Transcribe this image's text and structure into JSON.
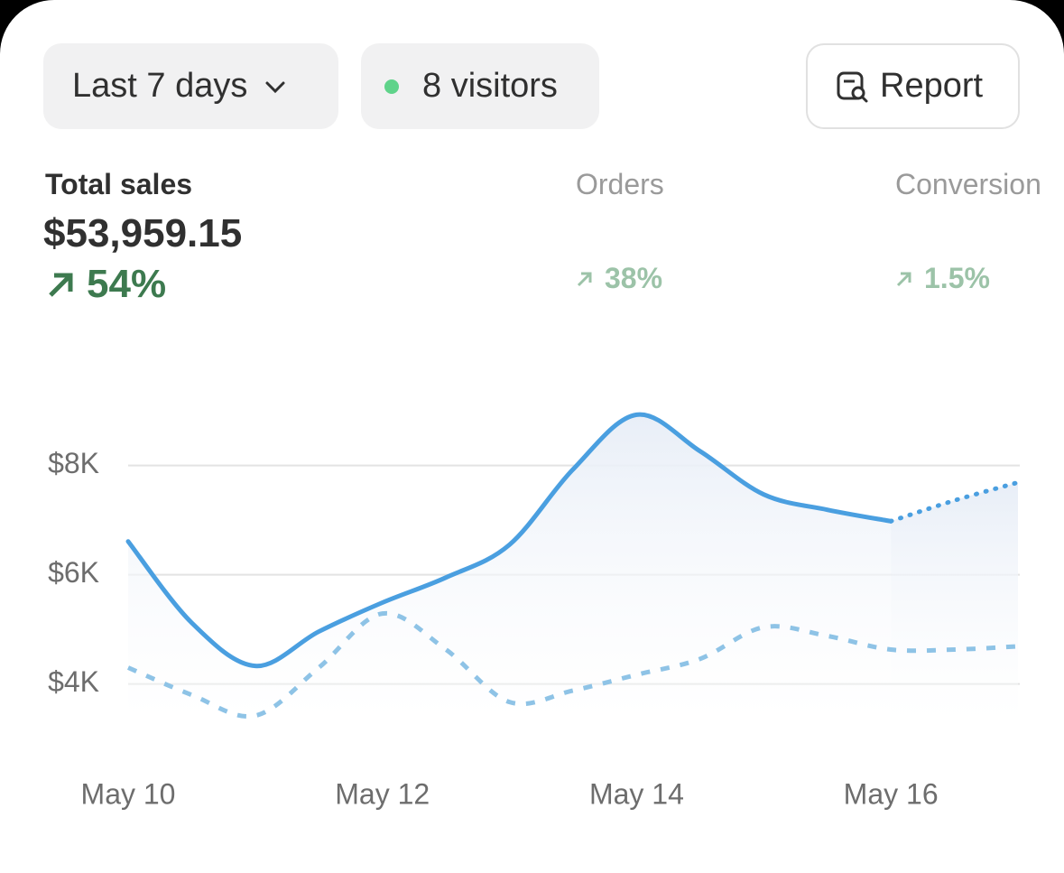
{
  "controls": {
    "range": "Last 7 days",
    "visitors": "8 visitors",
    "report": "Report"
  },
  "metrics": [
    {
      "label": "Total sales",
      "value": "$53,959.15",
      "change": "54%"
    },
    {
      "label": "Orders",
      "change": "38%"
    },
    {
      "label": "Conversion",
      "change": "1.5%"
    }
  ],
  "chart_data": {
    "type": "line",
    "categories": [
      "May 10",
      null,
      null,
      null,
      "May 12",
      null,
      null,
      null,
      "May 14",
      null,
      null,
      null,
      "May 16",
      null,
      null
    ],
    "series": [
      {
        "color": "#4a9fe0",
        "style": "solid",
        "values": [
          6610,
          5120,
          4330,
          4960,
          5490,
          5950,
          6550,
          7930,
          8930,
          8260,
          7470,
          7190,
          6980,
          null,
          null
        ]
      },
      {
        "color": "#4a9fe0",
        "style": "dotted",
        "values": [
          null,
          null,
          null,
          null,
          null,
          null,
          null,
          null,
          null,
          null,
          null,
          null,
          6980,
          7360,
          7690
        ]
      },
      {
        "color": "#8ec3e6",
        "style": "dashed",
        "values": [
          4300,
          3800,
          3420,
          4300,
          5290,
          4630,
          3670,
          3880,
          4170,
          4460,
          5040,
          4880,
          4630,
          4630,
          4690
        ]
      }
    ],
    "ylim": [
      3300,
      9250
    ],
    "yticks": [
      {
        "value": 4000,
        "label": "$4K"
      },
      {
        "value": 6000,
        "label": "$6K"
      },
      {
        "value": 8000,
        "label": "$8K"
      }
    ],
    "grid": true
  }
}
